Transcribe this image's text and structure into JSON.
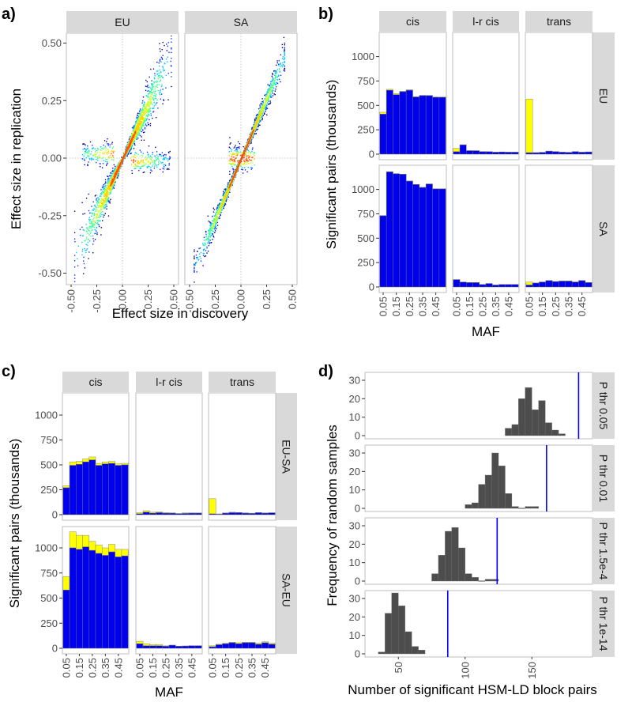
{
  "panel_labels": [
    "a)",
    "b)",
    "c)",
    "d)"
  ],
  "colors": {
    "blue": "#0000ee",
    "yellow": "#ffff00",
    "hist": "#4d4d4d",
    "vline": "#0000ff",
    "strip": "#d9d9d9"
  },
  "chart_data": [
    {
      "panel": "a",
      "type": "scatter",
      "facets": [
        "EU",
        "SA"
      ],
      "xlabel": "Effect size in discovery",
      "ylabel": "Effect size in replication",
      "xlim": [
        -0.5,
        0.5
      ],
      "ylim": [
        -0.5,
        0.5
      ],
      "xticks": [
        "-0.50",
        "-0.25",
        "0.00",
        "0.25",
        "0.50"
      ],
      "yticks": [
        "-0.50",
        "-0.25",
        "0.00",
        "0.25",
        "0.50"
      ],
      "reference_lines": {
        "x": 0,
        "y": 0
      }
    },
    {
      "panel": "b",
      "type": "bar",
      "stacked": true,
      "xlabel": "MAF",
      "ylabel": "Significant pairs (thousands)",
      "columns": [
        "cis",
        "l-r cis",
        "trans"
      ],
      "rows": [
        "EU",
        "SA"
      ],
      "categories": [
        0.05,
        0.1,
        0.15,
        0.2,
        0.25,
        0.3,
        0.35,
        0.4,
        0.45,
        0.5
      ],
      "xticks": [
        "0.05",
        "0.15",
        "0.25",
        "0.35",
        "0.45"
      ],
      "yticks": [
        "0",
        "250",
        "500",
        "750",
        "1000"
      ],
      "ylim": [
        0,
        1200
      ],
      "data": {
        "EU": {
          "cis": {
            "blue": [
              410,
              655,
              610,
              640,
              655,
              585,
              600,
              600,
              583,
              583
            ],
            "total": [
              430,
              665,
              620,
              645,
              660,
              590,
              603,
              602,
              586,
              585
            ]
          },
          "l-r cis": {
            "blue": [
              25,
              95,
              35,
              35,
              25,
              25,
              20,
              22,
              20,
              20
            ],
            "total": [
              60,
              97,
              37,
              36,
              27,
              26,
              21,
              23,
              21,
              21
            ]
          },
          "trans": {
            "blue": [
              15,
              15,
              18,
              30,
              25,
              20,
              18,
              25,
              20,
              22
            ],
            "total": [
              565,
              16,
              19,
              32,
              27,
              21,
              19,
              27,
              21,
              24
            ]
          }
        },
        "SA": {
          "cis": {
            "blue": [
              730,
              1180,
              1160,
              1155,
              1085,
              1050,
              1020,
              1055,
              1005,
              1005
            ],
            "total": [
              732,
              1182,
              1162,
              1157,
              1087,
              1052,
              1022,
              1057,
              1007,
              1007
            ]
          },
          "l-r cis": {
            "blue": [
              75,
              50,
              45,
              45,
              25,
              35,
              20,
              25,
              25,
              25
            ],
            "total": [
              77,
              51,
              46,
              46,
              26,
              36,
              21,
              26,
              26,
              26
            ]
          },
          "trans": {
            "blue": [
              20,
              40,
              50,
              65,
              55,
              60,
              60,
              50,
              65,
              45
            ],
            "total": [
              50,
              42,
              52,
              67,
              57,
              62,
              62,
              52,
              67,
              47
            ]
          }
        }
      }
    },
    {
      "panel": "c",
      "type": "bar",
      "stacked": true,
      "xlabel": "MAF",
      "ylabel": "Significant pairs (thousands)",
      "columns": [
        "cis",
        "l-r cis",
        "trans"
      ],
      "rows": [
        "EU-SA",
        "SA-EU"
      ],
      "categories": [
        0.05,
        0.1,
        0.15,
        0.2,
        0.25,
        0.3,
        0.35,
        0.4,
        0.45,
        0.5
      ],
      "xticks": [
        "0.05",
        "0.15",
        "0.25",
        "0.35",
        "0.45"
      ],
      "yticks": [
        "0",
        "250",
        "500",
        "750",
        "1000"
      ],
      "ylim": [
        0,
        1200
      ],
      "data": {
        "EU-SA": {
          "cis": {
            "blue": [
              270,
              495,
              505,
              530,
              550,
              495,
              510,
              515,
              495,
              500
            ],
            "total": [
              290,
              530,
              535,
              560,
              580,
              515,
              530,
              535,
              510,
              515
            ]
          },
          "l-r cis": {
            "blue": [
              10,
              25,
              15,
              20,
              15,
              15,
              10,
              12,
              15,
              15
            ],
            "total": [
              20,
              40,
              25,
              28,
              20,
              18,
              12,
              18,
              18,
              18
            ]
          },
          "trans": {
            "blue": [
              8,
              5,
              15,
              20,
              20,
              15,
              12,
              20,
              15,
              18
            ],
            "total": [
              160,
              8,
              18,
              25,
              22,
              18,
              15,
              21,
              18,
              20
            ]
          }
        },
        "SA-EU": {
          "cis": {
            "blue": [
              580,
              1000,
              985,
              1010,
              975,
              945,
              925,
              960,
              910,
              920
            ],
            "total": [
              715,
              1160,
              1125,
              1125,
              1065,
              1030,
              1000,
              1035,
              985,
              985
            ]
          },
          "l-r cis": {
            "blue": [
              45,
              25,
              25,
              25,
              20,
              30,
              20,
              22,
              25,
              25
            ],
            "total": [
              70,
              45,
              38,
              38,
              25,
              32,
              22,
              24,
              26,
              26
            ]
          },
          "trans": {
            "blue": [
              15,
              35,
              45,
              55,
              45,
              55,
              55,
              40,
              55,
              40
            ],
            "total": [
              25,
              40,
              50,
              60,
              55,
              60,
              60,
              50,
              65,
              50
            ]
          }
        }
      }
    },
    {
      "panel": "d",
      "type": "bar",
      "subtype": "histogram",
      "xlabel": "Number of significant HSM-LD block pairs",
      "ylabel": "Frequency of random samples",
      "xticks": [
        "50",
        "100",
        "150"
      ],
      "yticks": [
        "0",
        "10",
        "20",
        "30"
      ],
      "xlim": [
        25,
        195
      ],
      "ylim": [
        0,
        33
      ],
      "bin_width": 5,
      "facets": [
        {
          "label": "P thr 0.05",
          "bin_start": 130,
          "counts": [
            4,
            6,
            20,
            26,
            14,
            19,
            7,
            3,
            1
          ],
          "observed": 185
        },
        {
          "label": "P thr 0.01",
          "bin_start": 100,
          "counts": [
            2,
            3,
            13,
            18,
            30,
            23,
            8,
            1,
            0,
            1,
            1
          ],
          "observed": 161
        },
        {
          "label": "P thr 1.5e-4",
          "bin_start": 75,
          "counts": [
            4,
            14,
            27,
            29,
            18,
            4,
            2,
            0,
            1,
            1
          ],
          "observed": 124
        },
        {
          "label": "P thr 1e-14",
          "bin_start": 35,
          "counts": [
            1,
            22,
            33,
            26,
            12,
            4,
            2
          ],
          "observed": 87
        }
      ]
    }
  ]
}
